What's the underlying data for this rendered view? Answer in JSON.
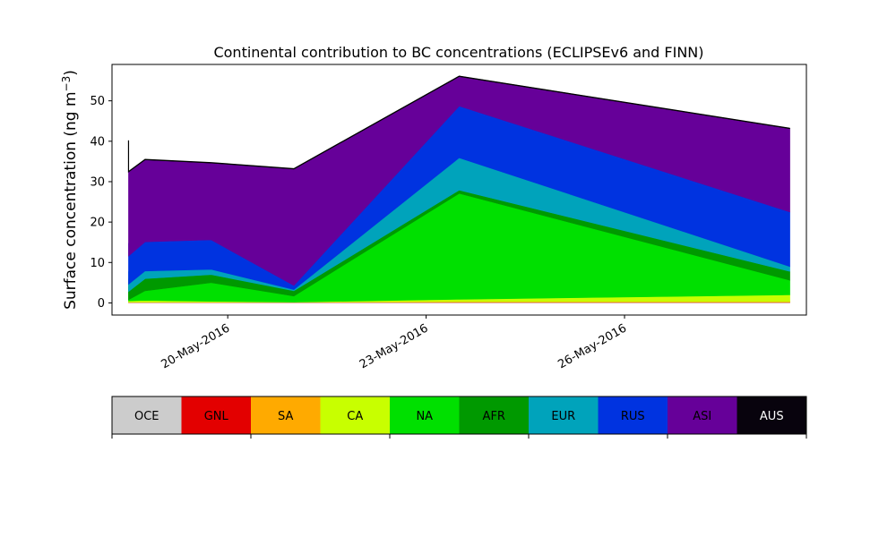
{
  "chart_data": {
    "type": "area",
    "stacked": true,
    "title": "Continental contribution to BC concentrations (ECLIPSEv6 and FINN)",
    "ylabel": "Surface concentration (ng m",
    "ylabel_sup": "−3",
    "ylabel_close": ")",
    "xlabel": "",
    "x": [
      "2016-05-18 12:00",
      "2016-05-18 12:00",
      "2016-05-18 18:00",
      "2016-05-19 18:00",
      "2016-05-21 00:00",
      "2016-05-23 12:00",
      "2016-05-28 12:00"
    ],
    "xlim": [
      "2016-05-18 06:00",
      "2016-05-28 18:00"
    ],
    "xticks": [
      {
        "date": "2016-05-20",
        "label": "20-May-2016"
      },
      {
        "date": "2016-05-23",
        "label": "23-May-2016"
      },
      {
        "date": "2016-05-26",
        "label": "26-May-2016"
      }
    ],
    "ylim": [
      -3,
      59
    ],
    "yticks": [
      0,
      10,
      20,
      30,
      40,
      50
    ],
    "grid": false,
    "series": [
      {
        "name": "OCE",
        "color": "#cccccc",
        "values": [
          0.1,
          0.1,
          0.1,
          0.1,
          0.1,
          0.1,
          0.1
        ]
      },
      {
        "name": "GNL",
        "color": "#e30000",
        "values": [
          0.05,
          0.05,
          0.05,
          0.05,
          0.05,
          0.1,
          0.1
        ]
      },
      {
        "name": "SA",
        "color": "#ffaa00",
        "values": [
          0.05,
          0.05,
          0.05,
          0.05,
          0.05,
          0.1,
          0.1
        ]
      },
      {
        "name": "CA",
        "color": "#c8ff00",
        "values": [
          3.5,
          0.3,
          0.4,
          0.2,
          0.0,
          0.6,
          1.7
        ]
      },
      {
        "name": "NA",
        "color": "#00e000",
        "values": [
          0.3,
          0.3,
          2.4,
          4.6,
          1.5,
          26.2,
          3.6
        ]
      },
      {
        "name": "AFR",
        "color": "#009900",
        "values": [
          2.0,
          2.0,
          3.0,
          2.0,
          1.3,
          0.8,
          2.2
        ]
      },
      {
        "name": "EUR",
        "color": "#00a3bb",
        "values": [
          1.8,
          1.8,
          1.9,
          1.3,
          0.3,
          8.0,
          1.2
        ]
      },
      {
        "name": "RUS",
        "color": "#0033e0",
        "values": [
          7.0,
          7.0,
          7.2,
          7.3,
          1.0,
          12.8,
          13.5
        ]
      },
      {
        "name": "ASI",
        "color": "#660099",
        "values": [
          25.3,
          20.8,
          20.3,
          19.0,
          28.8,
          7.3,
          20.6
        ]
      },
      {
        "name": "AUS",
        "color": "#08030d",
        "values": [
          0.1,
          0.1,
          0.1,
          0.1,
          0.1,
          0.1,
          0.1
        ]
      }
    ]
  }
}
